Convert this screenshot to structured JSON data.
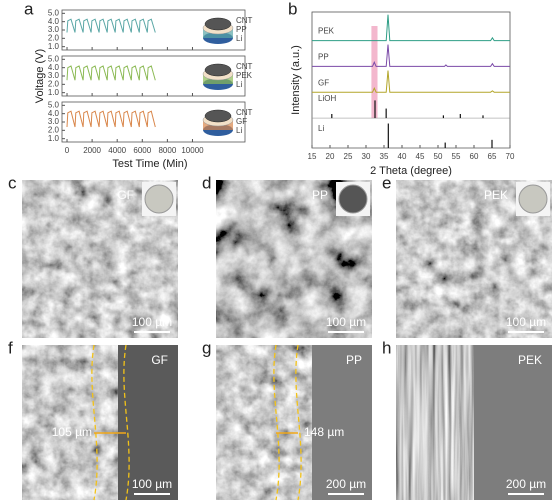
{
  "chart_data": [
    {
      "type": "line",
      "label": "a",
      "xlabel": "Test Time (Min)",
      "ylabel": "Voltage (V)",
      "xlim": [
        -400,
        10600
      ],
      "xticks": [
        0,
        2000,
        4000,
        6000,
        8000,
        10000
      ],
      "ylim": [
        0.6,
        5.4
      ],
      "yticks": [
        {
          "value": 1,
          "label": "1.0"
        },
        {
          "value": 2,
          "label": "2.0"
        },
        {
          "value": 3,
          "label": "3.0"
        },
        {
          "value": 4,
          "label": "4.0"
        },
        {
          "value": 5,
          "label": "5.0"
        }
      ],
      "x": [
        0,
        60,
        320,
        640,
        700,
        960,
        1280,
        1340,
        1600,
        1920,
        1980,
        2240,
        2560,
        2620,
        2880,
        3200,
        3260,
        3520,
        3840,
        3900,
        4160,
        4480,
        4540,
        4800,
        5120,
        5180,
        5440,
        5760,
        5820,
        6080,
        6400,
        6460,
        6720,
        7040
      ],
      "subplots": [
        {
          "legend": [
            "CNT",
            "PP",
            "Li"
          ],
          "series": [
            {
              "color": "#5aa7a6",
              "values": [
                2.7,
                4.1,
                4.3,
                2.7,
                4.1,
                4.3,
                2.7,
                4.1,
                4.3,
                2.7,
                4.1,
                4.3,
                2.7,
                4.1,
                4.3,
                2.7,
                4.1,
                4.3,
                2.7,
                4.1,
                4.3,
                2.7,
                4.1,
                4.3,
                2.7,
                4.1,
                4.3,
                2.7,
                4.1,
                4.3,
                2.7,
                4.1,
                4.3,
                2.7
              ]
            }
          ]
        },
        {
          "legend": [
            "CNT",
            "PEK",
            "Li"
          ],
          "series": [
            {
              "color": "#8cba55",
              "values": [
                2.5,
                4.0,
                4.2,
                2.5,
                4.0,
                4.2,
                2.5,
                4.0,
                4.2,
                2.5,
                4.0,
                4.2,
                2.5,
                4.0,
                4.2,
                2.5,
                4.0,
                4.2,
                2.5,
                4.0,
                4.2,
                2.5,
                4.0,
                4.2,
                2.5,
                4.0,
                4.2,
                2.5,
                4.0,
                4.2,
                2.5,
                4.0,
                4.2,
                2.5
              ]
            }
          ]
        },
        {
          "legend": [
            "CNT",
            "GF",
            "Li"
          ],
          "series": [
            {
              "color": "#d9864a",
              "values": [
                2.4,
                4.1,
                4.3,
                2.4,
                4.1,
                4.3,
                2.4,
                4.1,
                4.3,
                2.4,
                4.1,
                4.3,
                2.4,
                4.1,
                4.3,
                2.4,
                4.1,
                4.3,
                2.4,
                4.1,
                4.3,
                2.4,
                4.1,
                4.3,
                2.4,
                4.1,
                4.3,
                2.4,
                4.1,
                4.3,
                2.4,
                4.1,
                4.3,
                2.4
              ]
            }
          ]
        }
      ]
    },
    {
      "type": "line",
      "label": "b",
      "xlabel": "2 Theta (degree)",
      "ylabel": "Intensity (a.u.)",
      "xlim": [
        15,
        70
      ],
      "xticks": [
        15,
        20,
        25,
        30,
        35,
        40,
        45,
        50,
        55,
        60,
        65,
        70
      ],
      "ylim": [
        0,
        100
      ],
      "highlight": [
        31.5,
        33.2
      ],
      "highlight_color": "#f3b7cd",
      "series": [
        {
          "name": "PEK",
          "color": "#2e9e86",
          "x": [
            15,
            32,
            35.6,
            36.1,
            36.6,
            40,
            64.6,
            65.1,
            65.6,
            70
          ],
          "values": [
            79,
            79,
            79,
            98,
            79,
            79,
            79,
            81,
            79,
            79
          ]
        },
        {
          "name": "PP",
          "color": "#7b4aa8",
          "x": [
            15,
            31.8,
            32.3,
            32.8,
            35.6,
            36.1,
            36.6,
            51.8,
            52.2,
            52.6,
            64.6,
            65.1,
            65.6,
            70
          ],
          "values": [
            60,
            60,
            63,
            60,
            60,
            76,
            60,
            60,
            61,
            60,
            60,
            62,
            60,
            60
          ]
        },
        {
          "name": "GF",
          "color": "#b3a62a",
          "x": [
            15,
            31.8,
            32.3,
            32.8,
            35.6,
            36.1,
            36.6,
            64.6,
            65.1,
            65.6,
            70
          ],
          "values": [
            41,
            41,
            44,
            41,
            41,
            57,
            41,
            41,
            42,
            41,
            41
          ]
        }
      ],
      "sticks": [
        {
          "name": "LiOH",
          "color": "#111111",
          "base": 22,
          "x": [
            20.5,
            32.5,
            35.6,
            51.5,
            56.2,
            62.5
          ],
          "values": [
            25,
            35,
            29,
            24,
            25,
            24
          ]
        },
        {
          "name": "Li",
          "color": "#111111",
          "base": 0,
          "x": [
            36.2,
            52,
            65
          ],
          "values": [
            18,
            4,
            6
          ]
        }
      ]
    }
  ],
  "images": [
    {
      "label": "c",
      "tag": "GF",
      "scale": "100 µm"
    },
    {
      "label": "d",
      "tag": "PP",
      "scale": "100 µm"
    },
    {
      "label": "e",
      "tag": "PEK",
      "scale": "100 µm"
    },
    {
      "label": "f",
      "tag": "GF",
      "scale": "100 µm",
      "thickness": "105 µm"
    },
    {
      "label": "g",
      "tag": "PP",
      "scale": "200 µm",
      "thickness": "148 µm"
    },
    {
      "label": "h",
      "tag": "PEK",
      "scale": "200 µm"
    }
  ]
}
